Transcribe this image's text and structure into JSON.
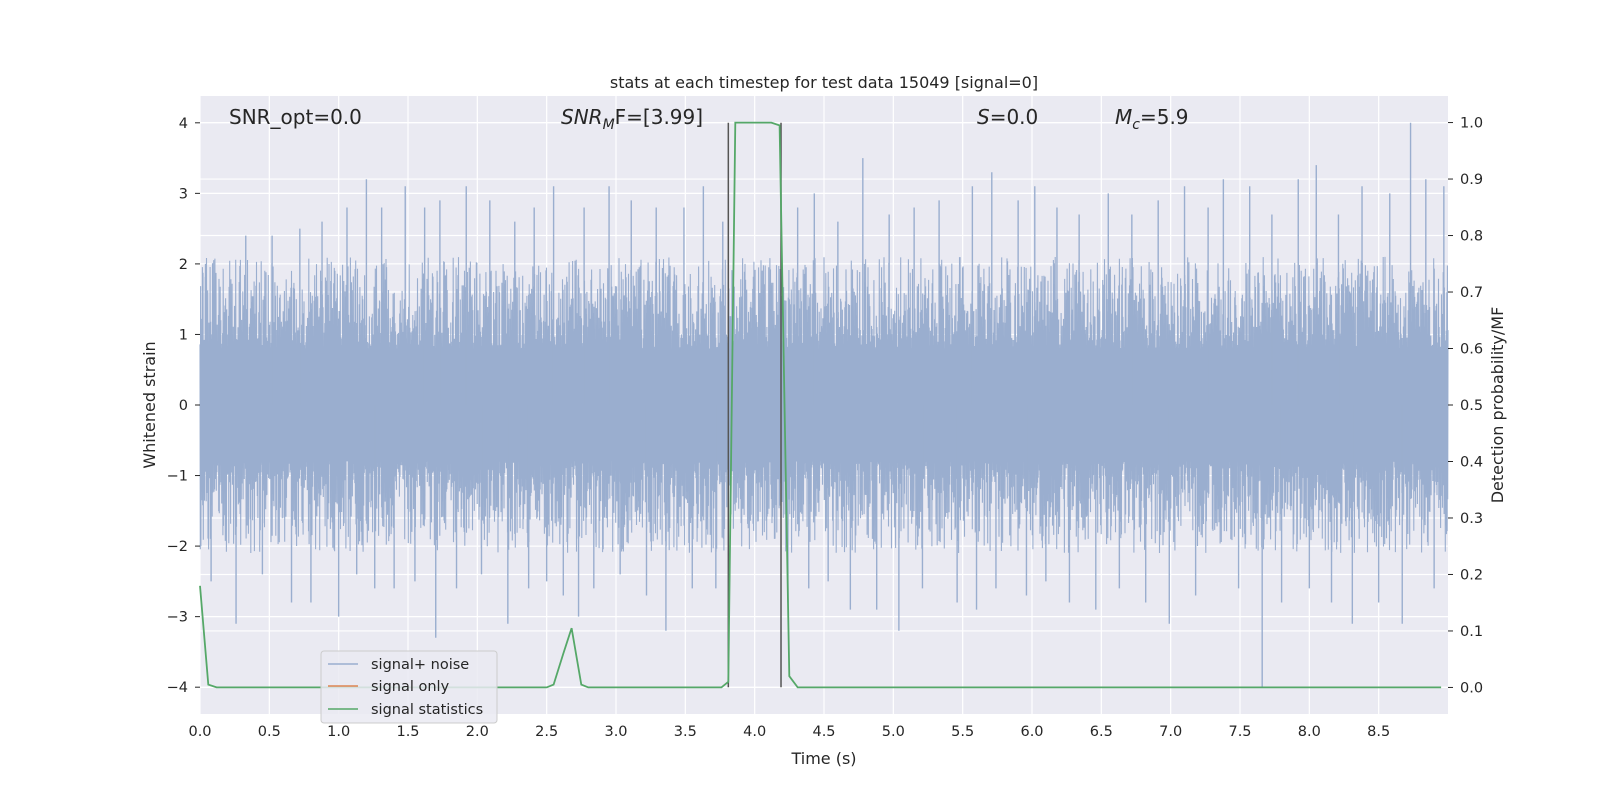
{
  "chart_data": {
    "type": "line",
    "title": "stats at each timestep for test data 15049 [signal=0]",
    "xlabel": "Time (s)",
    "ylabel": "Whitened strain",
    "ylabel_right": "Detection probability/MF",
    "xlim": [
      0.0,
      9.0
    ],
    "ylim": [
      -4.38,
      4.38
    ],
    "ylim_right": [
      -0.047,
      1.047
    ],
    "x_ticks": [
      "0.0",
      "0.5",
      "1.0",
      "1.5",
      "2.0",
      "2.5",
      "3.0",
      "3.5",
      "4.0",
      "4.5",
      "5.0",
      "5.5",
      "6.0",
      "6.5",
      "7.0",
      "7.5",
      "8.0",
      "8.5"
    ],
    "x_tick_values": [
      0.0,
      0.5,
      1.0,
      1.5,
      2.0,
      2.5,
      3.0,
      3.5,
      4.0,
      4.5,
      5.0,
      5.5,
      6.0,
      6.5,
      7.0,
      7.5,
      8.0,
      8.5
    ],
    "y_ticks": [
      "4",
      "3",
      "2",
      "1",
      "0",
      "−1",
      "−2",
      "−3",
      "−4"
    ],
    "y_tick_values": [
      4,
      3,
      2,
      1,
      0,
      -1,
      -2,
      -3,
      -4
    ],
    "y_ticks_right": [
      "1.0",
      "0.9",
      "0.8",
      "0.7",
      "0.6",
      "0.5",
      "0.4",
      "0.3",
      "0.2",
      "0.1",
      "0.0"
    ],
    "y_tick_values_right": [
      1.0,
      0.9,
      0.8,
      0.7,
      0.6,
      0.5,
      0.4,
      0.3,
      0.2,
      0.1,
      0.0
    ],
    "grid": true,
    "legend_placement": "lower-left",
    "annotations": {
      "snr_opt": "SNR_opt=0.0",
      "snr_mf_main": "SNR",
      "snr_mf_sub": "M",
      "snr_mf_tail": "F=[3.99]",
      "s_main": "S",
      "s_tail": "=0.0",
      "mc_main": "M",
      "mc_sub": "c",
      "mc_tail": "=5.9"
    },
    "vertical_lines_x": [
      3.81,
      4.19
    ],
    "series": [
      {
        "name": "signal+ noise",
        "color": "#9aaecf",
        "axis": "left",
        "style": "noise",
        "envelope_upper": 1.6,
        "envelope_lower": -1.6,
        "peak_x": [
          0.04,
          0.08,
          0.26,
          0.33,
          0.45,
          0.52,
          0.66,
          0.72,
          0.8,
          0.88,
          1.0,
          1.06,
          1.13,
          1.2,
          1.26,
          1.31,
          1.4,
          1.48,
          1.55,
          1.62,
          1.7,
          1.73,
          1.85,
          1.92,
          2.03,
          2.09,
          2.22,
          2.27,
          2.37,
          2.41,
          2.5,
          2.55,
          2.62,
          2.73,
          2.77,
          2.84,
          2.95,
          3.03,
          3.11,
          3.22,
          3.29,
          3.36,
          3.49,
          3.55,
          3.63,
          3.72,
          3.77,
          4.24,
          4.31,
          4.39,
          4.43,
          4.53,
          4.6,
          4.69,
          4.78,
          4.88,
          4.97,
          5.04,
          5.15,
          5.21,
          5.33,
          5.46,
          5.57,
          5.6,
          5.71,
          5.74,
          5.9,
          5.96,
          6.02,
          6.1,
          6.18,
          6.27,
          6.34,
          6.46,
          6.55,
          6.63,
          6.72,
          6.82,
          6.91,
          6.99,
          7.1,
          7.18,
          7.27,
          7.38,
          7.49,
          7.57,
          7.66,
          7.73,
          7.8,
          7.92,
          8.0,
          8.05,
          8.16,
          8.21,
          8.31,
          8.38,
          8.5,
          8.58,
          8.67,
          8.73,
          8.84,
          8.9,
          8.97
        ],
        "peak_y": [
          2.0,
          -2.5,
          -3.1,
          2.4,
          -2.4,
          2.4,
          -2.8,
          2.5,
          -2.8,
          2.6,
          -3.0,
          2.8,
          -2.4,
          3.2,
          -2.6,
          2.8,
          -2.6,
          3.1,
          -2.5,
          2.8,
          -3.3,
          2.9,
          -2.6,
          3.1,
          -2.4,
          2.9,
          -3.1,
          2.6,
          -2.6,
          2.8,
          -2.5,
          3.1,
          -2.7,
          -3.0,
          2.8,
          -2.6,
          3.1,
          -2.4,
          2.9,
          -2.7,
          2.8,
          -3.2,
          2.8,
          -2.6,
          3.1,
          -2.6,
          2.6,
          -2.8,
          2.8,
          -2.6,
          3.0,
          -2.5,
          2.6,
          -2.9,
          3.5,
          -2.9,
          2.7,
          -3.2,
          2.8,
          -2.6,
          2.9,
          -2.8,
          3.1,
          -2.9,
          3.3,
          -2.6,
          2.9,
          -2.7,
          3.1,
          -2.5,
          2.8,
          -2.8,
          2.7,
          -2.9,
          3.0,
          -2.6,
          2.7,
          -2.8,
          2.9,
          -3.1,
          3.1,
          -2.7,
          2.8,
          3.2,
          -2.6,
          3.1,
          -4.0,
          2.7,
          -2.8,
          3.2,
          -2.6,
          3.4,
          -2.8,
          2.7,
          -3.1,
          3.1,
          -2.8,
          3.0,
          -3.1,
          4.0,
          3.2,
          -2.6,
          3.1
        ]
      },
      {
        "name": "signal only",
        "color": "#dd8452",
        "axis": "left",
        "x": [],
        "y": []
      },
      {
        "name": "signal statistics",
        "color": "#55a868",
        "axis": "right",
        "x": [
          0.0,
          0.06,
          0.12,
          0.5,
          1.0,
          1.5,
          2.0,
          2.5,
          2.55,
          2.62,
          2.68,
          2.75,
          2.8,
          3.0,
          3.5,
          3.76,
          3.81,
          3.86,
          4.0,
          4.12,
          4.18,
          4.25,
          4.31,
          5.0,
          6.0,
          7.0,
          8.0,
          8.95
        ],
        "y": [
          0.18,
          0.005,
          0.0,
          0.0,
          0.0,
          0.0,
          0.0,
          0.0,
          0.005,
          0.06,
          0.105,
          0.005,
          0.0,
          0.0,
          0.0,
          0.0,
          0.01,
          1.0,
          1.0,
          1.0,
          0.995,
          0.02,
          0.0,
          0.0,
          0.0,
          0.0,
          0.0,
          0.0
        ]
      }
    ]
  }
}
